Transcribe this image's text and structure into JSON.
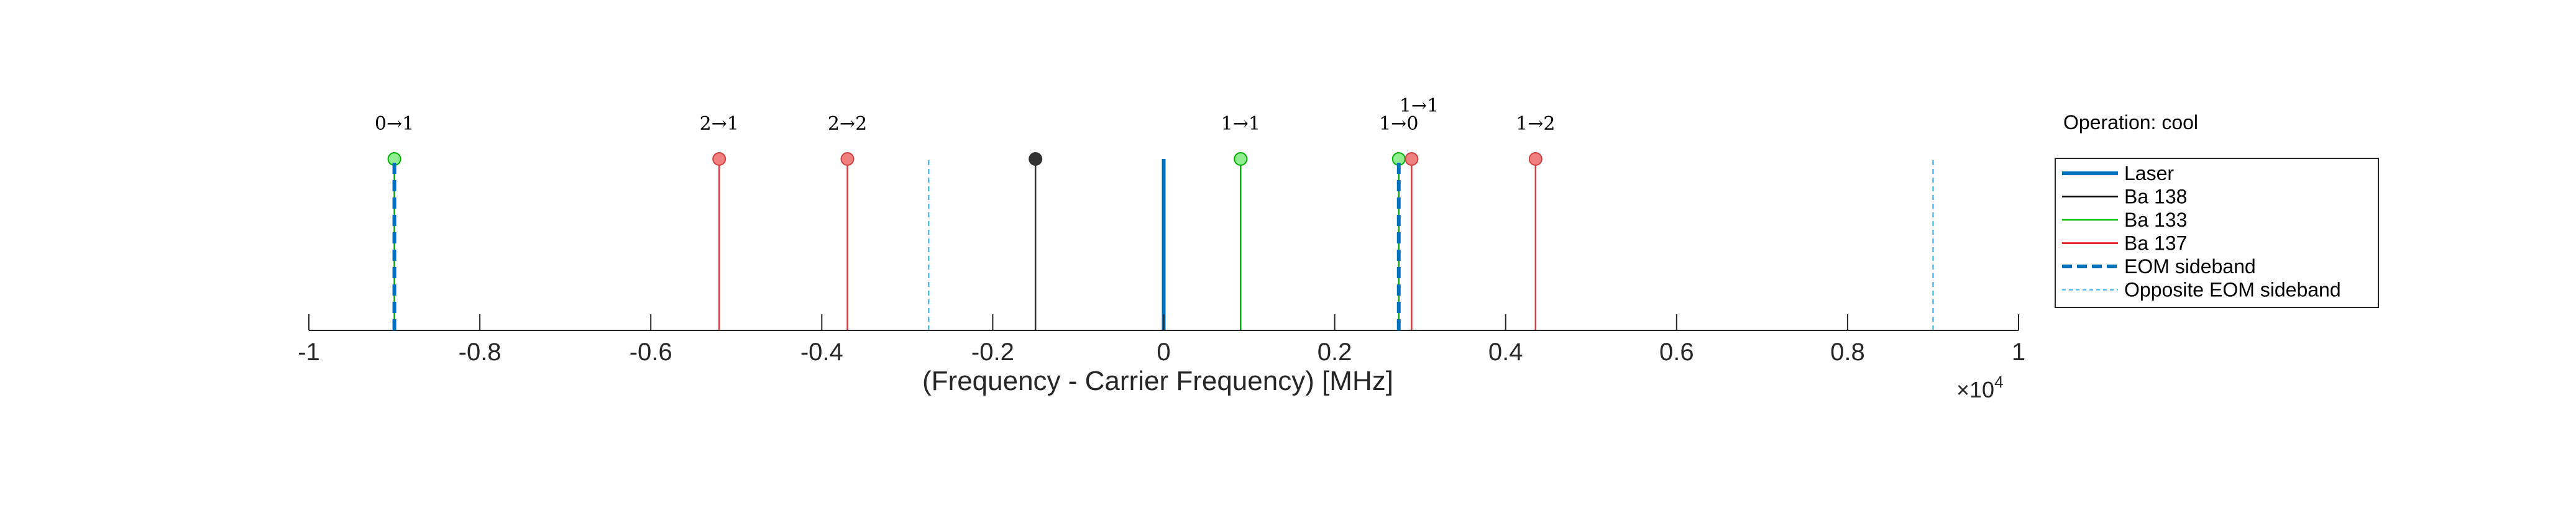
{
  "chart_data": {
    "type": "stem",
    "xlabel": "(Frequency - Carrier Frequency) [MHz]",
    "xlim": [
      -10000,
      10000
    ],
    "x_exponent_label": "×10",
    "x_exponent_power": "4",
    "x_tick_values": [
      -10000,
      -8000,
      -6000,
      -4000,
      -2000,
      0,
      2000,
      4000,
      6000,
      8000,
      10000
    ],
    "x_tick_labels": [
      "-1",
      "-0.8",
      "-0.6",
      "-0.4",
      "-0.2",
      "0",
      "0.2",
      "0.4",
      "0.6",
      "0.8",
      "1"
    ],
    "y_stem_height": 1,
    "y_dashed_height": 1,
    "operation": "Operation: cool",
    "legend": {
      "position": "right",
      "entries": [
        {
          "label": "Laser",
          "color": "#0072BD",
          "style": "solid-thick"
        },
        {
          "label": "Ba 138",
          "color": "#000000",
          "style": "solid"
        },
        {
          "label": "Ba 133",
          "color": "#00C000",
          "style": "solid"
        },
        {
          "label": "Ba 137",
          "color": "#E00000",
          "style": "solid"
        },
        {
          "label": "EOM sideband",
          "color": "#0072BD",
          "style": "dashed-thick"
        },
        {
          "label": "Opposite EOM sideband",
          "color": "#4DBEEE",
          "style": "dashed"
        }
      ]
    },
    "series": [
      {
        "name": "Laser",
        "kind": "line",
        "color": "#0072BD",
        "points": [
          {
            "x": 0
          }
        ]
      },
      {
        "name": "Ba 138",
        "kind": "stem",
        "color": "#333333",
        "marker_fill": "#333333",
        "points": [
          {
            "x": -1500
          }
        ]
      },
      {
        "name": "Ba 133",
        "kind": "stem",
        "color": "#00B000",
        "marker_fill": "#90EE90",
        "points": [
          {
            "x": -9000,
            "label": "0→1"
          },
          {
            "x": 900,
            "label": "1→1"
          },
          {
            "x": 2750,
            "label": "1→0"
          }
        ]
      },
      {
        "name": "Ba 137",
        "kind": "stem",
        "color": "#D04040",
        "marker_fill": "#F08080",
        "points": [
          {
            "x": -5200,
            "label": "2→1"
          },
          {
            "x": -3700,
            "label": "2→2"
          },
          {
            "x": 2900,
            "label": "1→1"
          },
          {
            "x": 4350,
            "label": "1→2"
          }
        ]
      },
      {
        "name": "EOM sideband",
        "kind": "dashed",
        "color": "#0072BD",
        "points": [
          {
            "x": -9000
          },
          {
            "x": 2750
          }
        ]
      },
      {
        "name": "Opposite EOM sideband",
        "kind": "dashed-thin",
        "color": "#4DBEEE",
        "points": [
          {
            "x": -2750
          },
          {
            "x": 9000
          }
        ]
      }
    ]
  }
}
